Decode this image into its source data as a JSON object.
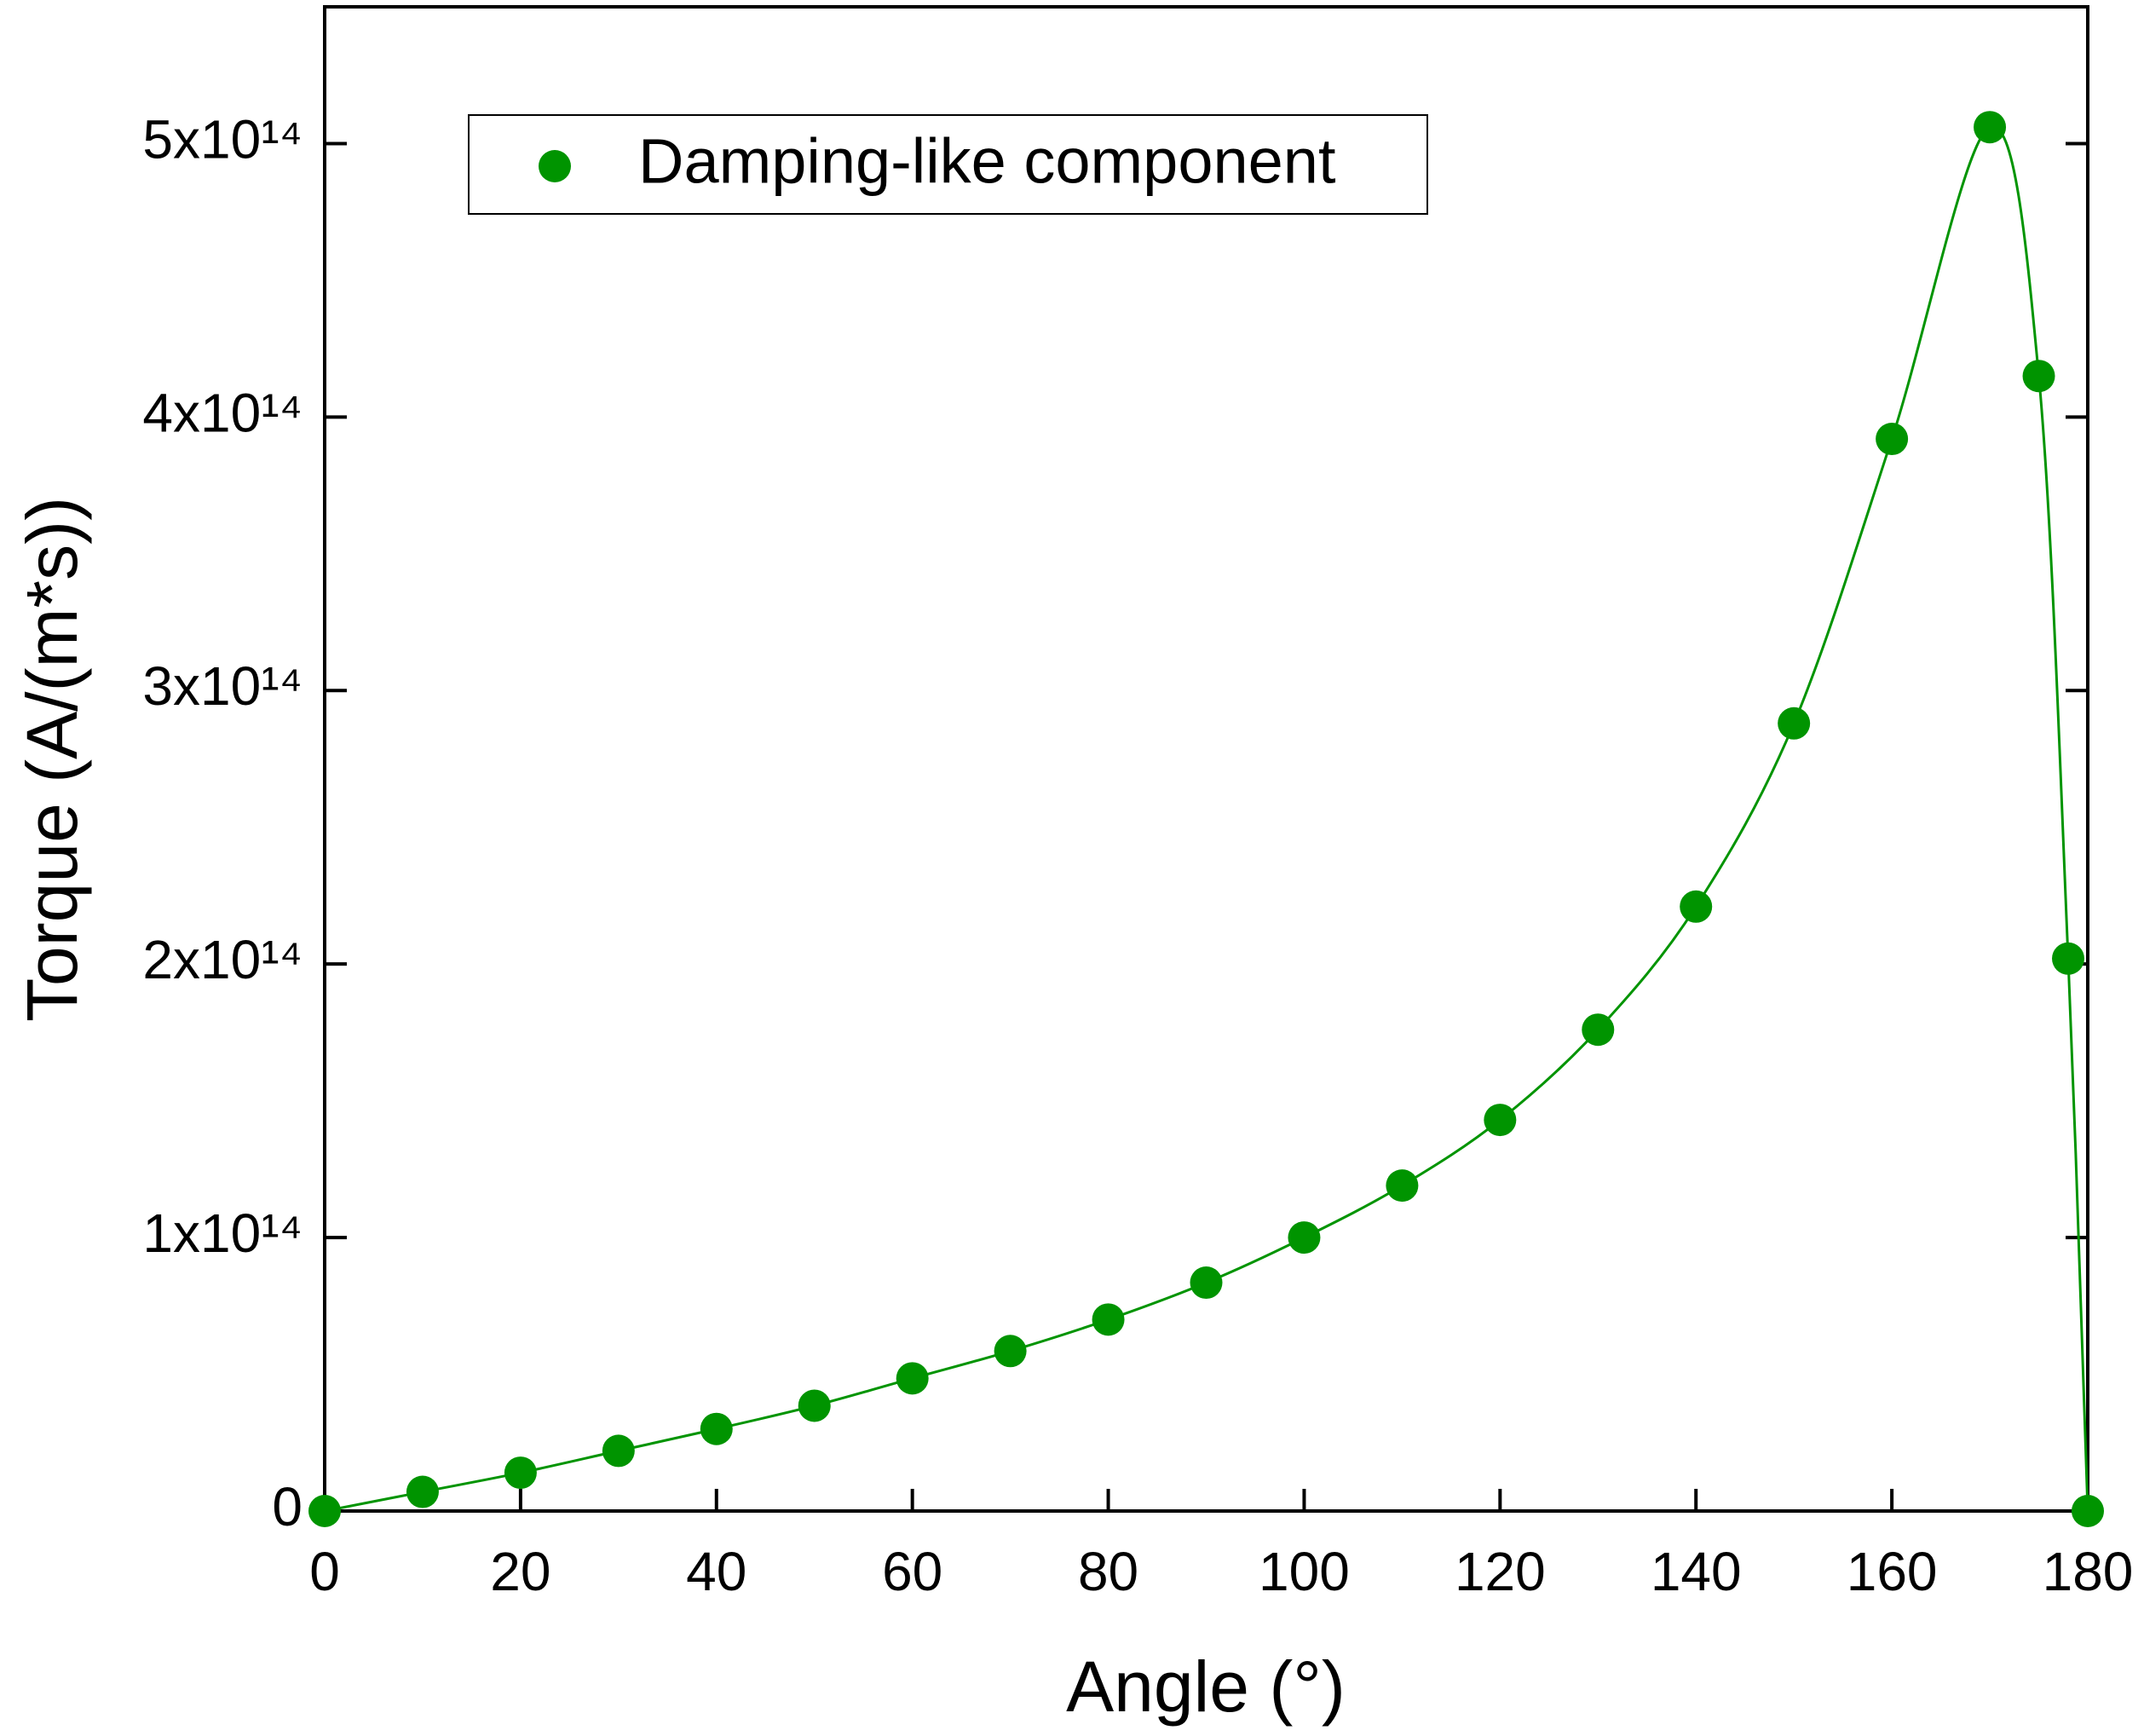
{
  "chart_data": {
    "type": "scatter",
    "x_label": "Angle (°)",
    "y_label": "Torque (A/(m*s))",
    "x": [
      0,
      10,
      20,
      30,
      40,
      50,
      60,
      70,
      80,
      90,
      100,
      110,
      120,
      130,
      140,
      150,
      160,
      170,
      175,
      178,
      180
    ],
    "series": [
      {
        "name": "Damping-like component",
        "color": "#009400",
        "values": [
          0,
          7000000000000.0,
          14000000000000.0,
          22000000000000.0,
          30000000000000.0,
          38500000000000.0,
          48500000000000.0,
          58500000000000.0,
          70000000000000.0,
          83500000000000.0,
          100000000000000.0,
          119000000000000.0,
          143000000000000.0,
          176000000000000.0,
          221000000000000.0,
          288000000000000.0,
          392000000000000.0,
          506000000000000.0,
          415000000000000.0,
          202000000000000.0,
          0
        ]
      }
    ],
    "fit_line": true,
    "xlim": [
      0,
      180
    ],
    "xticks": [
      0,
      20,
      40,
      60,
      80,
      100,
      120,
      140,
      160,
      180
    ],
    "ylim": [
      0,
      550000000000000.0
    ],
    "yticks": [
      0,
      {
        "value": 100000000000000.0,
        "label": "1x10¹⁴"
      },
      {
        "value": 200000000000000.0,
        "label": "2x10¹⁴"
      },
      {
        "value": 300000000000000.0,
        "label": "3x10¹⁴"
      },
      {
        "value": 400000000000000.0,
        "label": "4x10¹⁴"
      },
      {
        "value": 500000000000000.0,
        "label": "5x10¹⁴"
      }
    ],
    "legend": "top-left"
  }
}
